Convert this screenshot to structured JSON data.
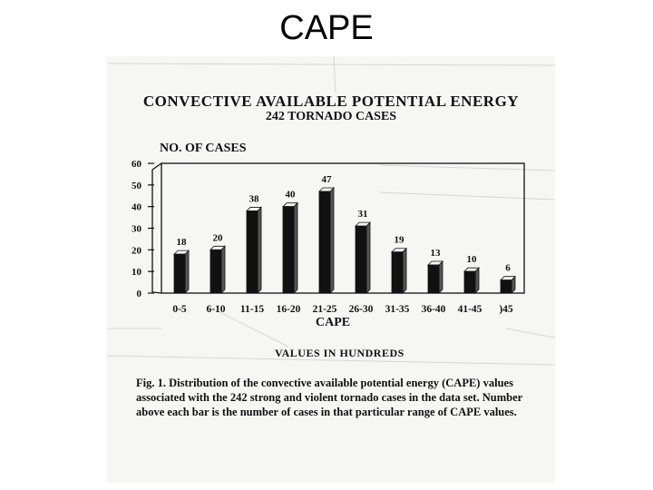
{
  "slide": {
    "title": "CAPE"
  },
  "chart_data": {
    "type": "bar",
    "title": "CONVECTIVE AVAILABLE POTENTIAL ENERGY",
    "subtitle": "242 TORNADO CASES",
    "ylabel": "NO. OF CASES",
    "xlabel": "CAPE",
    "x_note": "VALUES IN HUNDREDS",
    "categories": [
      "0-5",
      "6-10",
      "11-15",
      "16-20",
      "21-25",
      "26-30",
      "31-35",
      "36-40",
      "41-45",
      ")45"
    ],
    "values": [
      18,
      20,
      38,
      40,
      47,
      31,
      19,
      13,
      10,
      6
    ],
    "yticks": [
      0,
      10,
      20,
      30,
      40,
      50,
      60
    ],
    "ylim": [
      0,
      60
    ],
    "grid": false,
    "bar_color": "#111111"
  },
  "caption": {
    "label": "Fig. 1.",
    "text": "Distribution of the convective available potential energy (CAPE) values associated with the 242 strong and violent tornado cases in the data set. Number above each bar is the number of cases in that particular range of CAPE values."
  }
}
